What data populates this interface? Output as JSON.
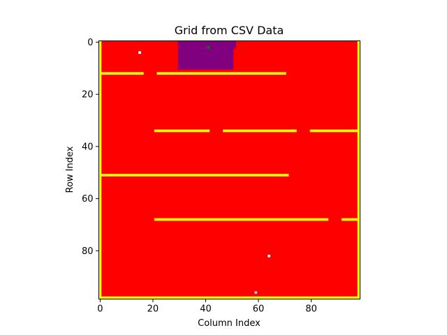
{
  "chart_data": {
    "type": "heatmap",
    "title": "Grid from CSV Data",
    "xlabel": "Column Index",
    "ylabel": "Row Index",
    "xlim": [
      -0.5,
      98.5
    ],
    "ylim": [
      98.5,
      -0.5
    ],
    "grid": false,
    "x_ticks": [
      0,
      20,
      40,
      60,
      80
    ],
    "y_ticks": [
      0,
      20,
      40,
      60,
      80
    ],
    "x_tick_labels": [
      "0",
      "20",
      "40",
      "60",
      "80"
    ],
    "y_tick_labels": [
      "0",
      "20",
      "40",
      "60",
      "80"
    ],
    "background_color": "#ff0000",
    "cell_colors": {
      "red": "#ff0000",
      "yellow": "#ffff00",
      "purple": "#800080",
      "green": "#008000",
      "white": "#ffffff",
      "lightblue": "#87cefa"
    },
    "regions": [
      {
        "color": "purple",
        "col_start": 30,
        "col_end": 50,
        "row_start": 0,
        "row_end": 10
      },
      {
        "color": "purple",
        "col_start": 50,
        "col_end": 51,
        "row_start": 0,
        "row_end": 2
      },
      {
        "color": "yellow",
        "col_start": 0,
        "col_end": 0,
        "row_start": 0,
        "row_end": 98
      },
      {
        "color": "yellow",
        "col_start": 98,
        "col_end": 98,
        "row_start": 0,
        "row_end": 98
      },
      {
        "color": "yellow",
        "col_start": 0,
        "col_end": 98,
        "row_start": 98,
        "row_end": 98
      },
      {
        "color": "yellow",
        "col_start": 0,
        "col_end": 16,
        "row_start": 12,
        "row_end": 12
      },
      {
        "color": "yellow",
        "col_start": 22,
        "col_end": 70,
        "row_start": 12,
        "row_end": 12
      },
      {
        "color": "yellow",
        "col_start": 21,
        "col_end": 41,
        "row_start": 34,
        "row_end": 34
      },
      {
        "color": "yellow",
        "col_start": 47,
        "col_end": 74,
        "row_start": 34,
        "row_end": 34
      },
      {
        "color": "yellow",
        "col_start": 80,
        "col_end": 98,
        "row_start": 34,
        "row_end": 34
      },
      {
        "color": "yellow",
        "col_start": 0,
        "col_end": 71,
        "row_start": 51,
        "row_end": 51
      },
      {
        "color": "yellow",
        "col_start": 21,
        "col_end": 86,
        "row_start": 68,
        "row_end": 68
      },
      {
        "color": "yellow",
        "col_start": 92,
        "col_end": 98,
        "row_start": 68,
        "row_end": 68
      },
      {
        "color": "white",
        "col_start": 15,
        "col_end": 15,
        "row_start": 4,
        "row_end": 4
      },
      {
        "color": "white",
        "col_start": 64,
        "col_end": 64,
        "row_start": 82,
        "row_end": 82
      },
      {
        "color": "green",
        "col_start": 41,
        "col_end": 41,
        "row_start": 2,
        "row_end": 2
      },
      {
        "color": "lightblue",
        "col_start": 59,
        "col_end": 59,
        "row_start": 96,
        "row_end": 96
      }
    ]
  }
}
